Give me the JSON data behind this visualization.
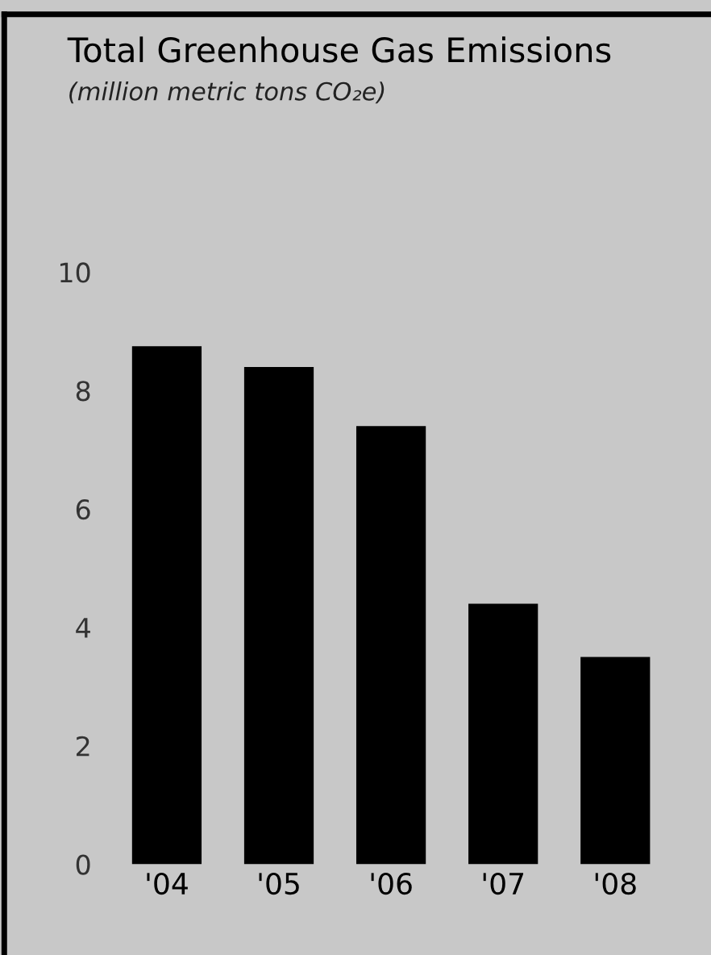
{
  "chart_data": {
    "type": "bar",
    "title": "Total Greenhouse Gas Emissions",
    "subtitle": "(million metric tons CO₂e)",
    "categories": [
      "'04",
      "'05",
      "'06",
      "'07",
      "'08"
    ],
    "values": [
      8.75,
      8.4,
      7.4,
      4.4,
      3.5
    ],
    "color": "#000000",
    "ylim": [
      0,
      10
    ],
    "yticks": [
      0,
      2,
      4,
      6,
      8,
      10
    ],
    "grid": false
  }
}
